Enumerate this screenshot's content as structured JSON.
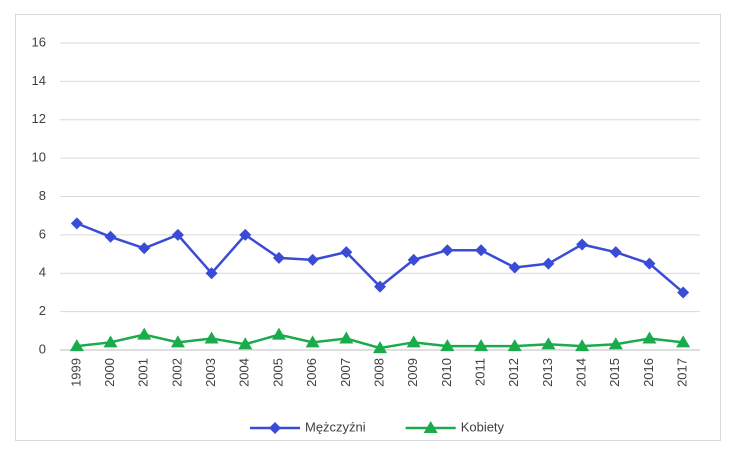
{
  "chart_data": {
    "type": "line",
    "categories": [
      "1999",
      "2000",
      "2001",
      "2002",
      "2003",
      "2004",
      "2005",
      "2006",
      "2007",
      "2008",
      "2009",
      "2010",
      "2011",
      "2012",
      "2013",
      "2014",
      "2015",
      "2016",
      "2017"
    ],
    "series": [
      {
        "name": "Mężczyźni",
        "color": "#3a4bd6",
        "marker": "diamond",
        "values": [
          6.6,
          5.9,
          5.3,
          6.0,
          4.0,
          6.0,
          4.8,
          4.7,
          5.1,
          3.3,
          4.7,
          5.2,
          5.2,
          4.3,
          4.5,
          5.5,
          5.1,
          4.5,
          3.0
        ]
      },
      {
        "name": "Kobiety",
        "color": "#1aab4c",
        "marker": "triangle",
        "values": [
          0.2,
          0.4,
          0.8,
          0.4,
          0.6,
          0.3,
          0.8,
          0.4,
          0.6,
          0.1,
          0.4,
          0.2,
          0.2,
          0.2,
          0.3,
          0.2,
          0.3,
          0.6,
          0.4
        ]
      }
    ],
    "ylim": [
      0,
      16
    ],
    "yticks": [
      0,
      2,
      4,
      6,
      8,
      10,
      12,
      14,
      16
    ],
    "grid": true,
    "legend": "bottom"
  }
}
